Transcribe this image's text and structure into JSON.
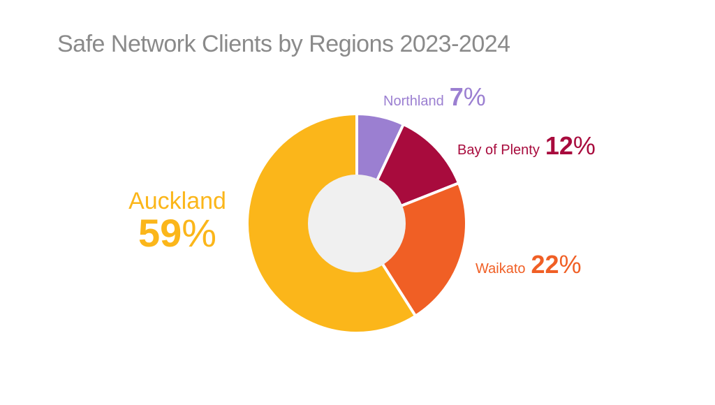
{
  "title": "Safe Network Clients by Regions 2023-2024",
  "percent_symbol": "%",
  "chart_data": {
    "type": "pie",
    "categories": [
      "Northland",
      "Bay of Plenty",
      "Waikato",
      "Auckland"
    ],
    "values": [
      7,
      12,
      22,
      59
    ],
    "colors": [
      "#9b7fd1",
      "#a80b3d",
      "#f05f25",
      "#fbb61a"
    ],
    "center_color": "#f0f0f0",
    "donut": true
  },
  "labels": {
    "northland": {
      "name": "Northland",
      "value": "7",
      "color": "#9b7fd1"
    },
    "bay_of_plenty": {
      "name": "Bay of Plenty",
      "value": "12",
      "color": "#a80b3d"
    },
    "waikato": {
      "name": "Waikato",
      "value": "22",
      "color": "#f05f25"
    },
    "auckland": {
      "name": "Auckland",
      "value": "59",
      "color": "#fbb61a"
    }
  }
}
